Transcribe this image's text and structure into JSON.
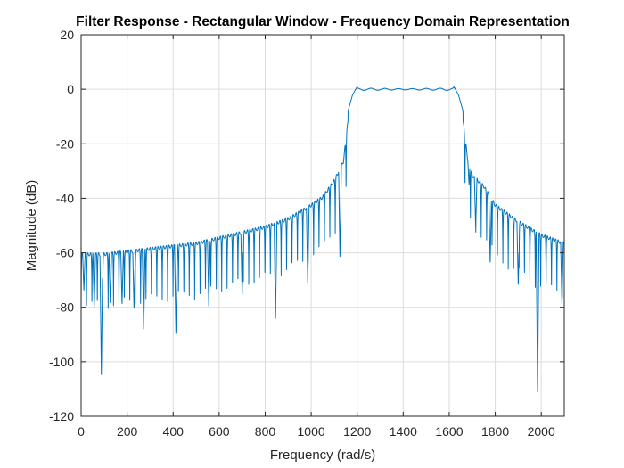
{
  "chart_data": {
    "type": "line",
    "title": "Filter Response - Rectangular Window - Frequency Domain Representation",
    "xlabel": "Frequency (rad/s)",
    "ylabel": "Magnitude (dB)",
    "xlim": [
      0,
      2100
    ],
    "ylim": [
      -120,
      20
    ],
    "xticks": [
      0,
      200,
      400,
      600,
      800,
      1000,
      1200,
      1400,
      1600,
      1800,
      2000
    ],
    "yticks": [
      20,
      0,
      -20,
      -40,
      -60,
      -80,
      -100,
      -120
    ],
    "xtick_labels": [
      "0",
      "200",
      "400",
      "600",
      "800",
      "1000",
      "1200",
      "1400",
      "1600",
      "1800",
      "2000"
    ],
    "ytick_labels": [
      "20",
      "0",
      "-20",
      "-40",
      "-60",
      "-80",
      "-100",
      "-120"
    ],
    "grid": true,
    "line_color": "#0072BD",
    "passband": [
      1200,
      1620
    ],
    "passband_level_db": 0,
    "passband_ripple_db": 1,
    "series": [
      {
        "x": [
          0,
          100,
          200,
          300,
          400,
          500,
          600,
          700,
          800,
          900,
          1000,
          1050,
          1100,
          1140,
          1160,
          1180,
          1200,
          1620,
          1640,
          1660,
          1680,
          1700,
          1750,
          1800,
          1900,
          2000,
          2100
        ],
        "envelope": [
          -57,
          -57,
          -56,
          -55,
          -54,
          -53,
          -51,
          -49,
          -47,
          -44,
          -39,
          -36,
          -30,
          -23,
          -8,
          -2,
          1,
          1,
          -2,
          -8,
          -22,
          -28,
          -32,
          -39,
          -45,
          -50,
          -53
        ],
        "notches": [
          {
            "x": 12,
            "y": -74
          },
          {
            "x": 57,
            "y": -80
          },
          {
            "x": 88,
            "y": -105
          },
          {
            "x": 127,
            "y": -79
          },
          {
            "x": 178,
            "y": -79
          },
          {
            "x": 230,
            "y": -81
          },
          {
            "x": 272,
            "y": -89
          },
          {
            "x": 412,
            "y": -90
          },
          {
            "x": 555,
            "y": -80
          },
          {
            "x": 700,
            "y": -76
          },
          {
            "x": 845,
            "y": -85
          },
          {
            "x": 985,
            "y": -71
          },
          {
            "x": 1125,
            "y": -62
          },
          {
            "x": 1686,
            "y": -35
          },
          {
            "x": 1715,
            "y": -51
          },
          {
            "x": 1778,
            "y": -64
          },
          {
            "x": 1900,
            "y": -72
          },
          {
            "x": 1984,
            "y": -112
          },
          {
            "x": 2090,
            "y": -79
          }
        ]
      }
    ]
  }
}
